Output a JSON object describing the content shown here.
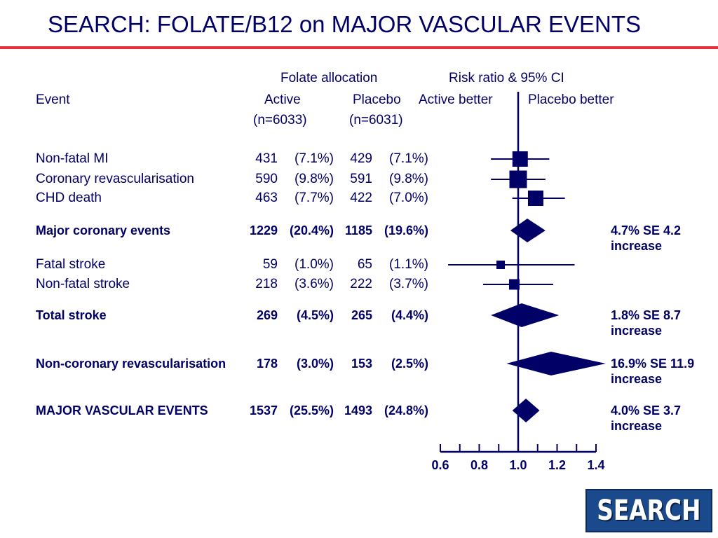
{
  "title": "SEARCH: FOLATE/B12 on MAJOR VASCULAR EVENTS",
  "header": {
    "folate_allocation": "Folate allocation",
    "risk_ratio": "Risk ratio & 95% CI",
    "event": "Event",
    "active": "Active",
    "placebo": "Placebo",
    "active_better": "Active better",
    "placebo_better": "Placebo better",
    "n_active": "(n=6033)",
    "n_placebo": "(n=6031)"
  },
  "colors": {
    "primary": "#000066",
    "rule": "#e8303a",
    "logo_bg": "#1b4a8c"
  },
  "logo": {
    "text": "SEARCH"
  },
  "chart_data": {
    "type": "forest",
    "x_axis": {
      "scale": "linear",
      "range": [
        0.6,
        1.4
      ],
      "ticks": [
        0.6,
        0.8,
        1.0,
        1.2,
        1.4
      ],
      "tick_labels": [
        "0.6",
        "0.8",
        "1.0",
        "1.2",
        "1.4"
      ],
      "reference_line": 1.0
    },
    "rows": [
      {
        "event": "Non-fatal MI",
        "active_n": "431",
        "active_pct": "(7.1%)",
        "placebo_n": "429",
        "placebo_pct": "(7.1%)",
        "rr": 1.01,
        "lo": 0.86,
        "hi": 1.16,
        "marker": "square",
        "weight": 0.7,
        "bold": false,
        "effect": ""
      },
      {
        "event": "Coronary revascularisation",
        "active_n": "590",
        "active_pct": "(9.8%)",
        "placebo_n": "591",
        "placebo_pct": "(9.8%)",
        "rr": 1.0,
        "lo": 0.86,
        "hi": 1.14,
        "marker": "square",
        "weight": 0.85,
        "bold": false,
        "effect": ""
      },
      {
        "event": "CHD death",
        "active_n": "463",
        "active_pct": "(7.7%)",
        "placebo_n": "422",
        "placebo_pct": "(7.0%)",
        "rr": 1.09,
        "lo": 0.97,
        "hi": 1.24,
        "marker": "square",
        "weight": 0.7,
        "bold": false,
        "effect": ""
      },
      {
        "event": "Major coronary events",
        "active_n": "1229",
        "active_pct": "(20.4%)",
        "placebo_n": "1185",
        "placebo_pct": "(19.6%)",
        "rr": 1.047,
        "lo": 0.96,
        "hi": 1.14,
        "marker": "diamond",
        "bold": true,
        "effect": "4.7% SE 4.2",
        "effect2": "increase"
      },
      {
        "event": "Fatal stroke",
        "active_n": "59",
        "active_pct": "(1.0%)",
        "placebo_n": "65",
        "placebo_pct": "(1.1%)",
        "rr": 0.91,
        "lo": 0.64,
        "hi": 1.29,
        "marker": "square",
        "weight": 0.2,
        "bold": false,
        "effect": ""
      },
      {
        "event": "Non-fatal stroke",
        "active_n": "218",
        "active_pct": "(3.6%)",
        "placebo_n": "222",
        "placebo_pct": "(3.7%)",
        "rr": 0.98,
        "lo": 0.82,
        "hi": 1.18,
        "marker": "square",
        "weight": 0.35,
        "bold": false,
        "effect": ""
      },
      {
        "event": "Total stroke",
        "active_n": "269",
        "active_pct": "(4.5%)",
        "placebo_n": "265",
        "placebo_pct": "(4.4%)",
        "rr": 1.018,
        "lo": 0.86,
        "hi": 1.21,
        "marker": "diamond",
        "bold": true,
        "effect": "1.8% SE 8.7",
        "effect2": "increase"
      },
      {
        "event": "Non-coronary revascularisation",
        "active_n": "178",
        "active_pct": "(3.0%)",
        "placebo_n": "153",
        "placebo_pct": "(2.5%)",
        "rr": 1.169,
        "lo": 0.94,
        "hi": 1.45,
        "marker": "diamond",
        "bold": true,
        "effect": "16.9% SE 11.9",
        "effect2": "increase"
      },
      {
        "event": "MAJOR VASCULAR EVENTS",
        "active_n": "1537",
        "active_pct": "(25.5%)",
        "placebo_n": "1493",
        "placebo_pct": "(24.8%)",
        "rr": 1.04,
        "lo": 0.97,
        "hi": 1.11,
        "marker": "diamond",
        "bold": true,
        "effect": "4.0% SE 3.7",
        "effect2": "increase"
      }
    ]
  }
}
